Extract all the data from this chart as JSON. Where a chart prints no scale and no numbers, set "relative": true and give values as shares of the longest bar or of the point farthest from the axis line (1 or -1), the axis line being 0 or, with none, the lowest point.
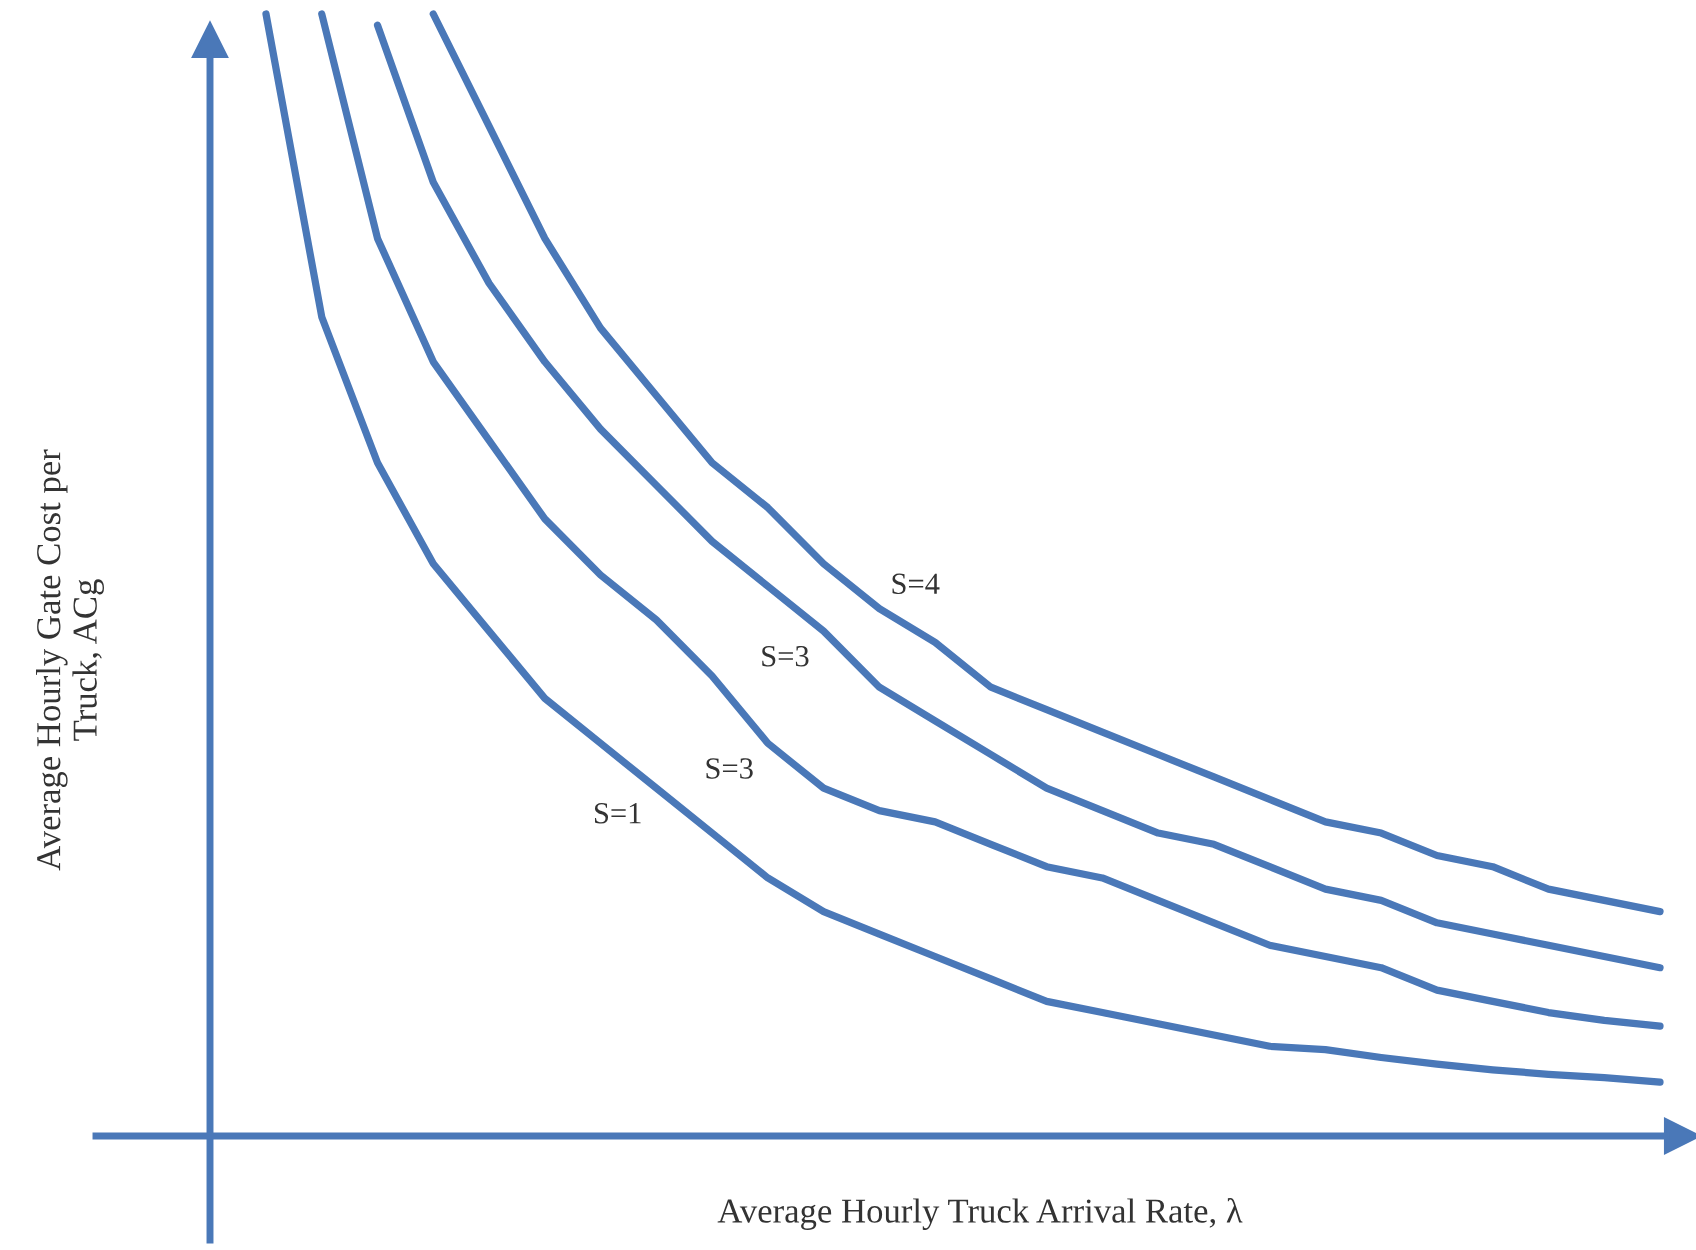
{
  "chart_data": {
    "type": "line",
    "relative": true,
    "xlabel": "Average Hourly Truck Arrival Rate, λ",
    "ylabel": "Average Hourly Gate Cost per\nTruck, ACg",
    "categories": [
      null,
      null,
      null,
      null,
      null,
      null,
      null,
      null,
      null,
      null,
      null,
      null,
      null,
      null,
      null,
      null,
      null,
      null,
      null,
      null,
      null,
      null,
      null,
      null,
      null,
      null
    ],
    "series": [
      {
        "name": "S=1",
        "color": "#4a78b8",
        "values": [
          1.0,
          0.73,
          0.6,
          0.51,
          0.45,
          0.39,
          0.35,
          0.31,
          0.27,
          0.23,
          0.2,
          0.18,
          0.16,
          0.14,
          0.12,
          0.11,
          0.1,
          0.09,
          0.08,
          0.077,
          0.07,
          0.064,
          0.059,
          0.055,
          0.052,
          0.048
        ]
      },
      {
        "name": "S=3",
        "color": "#4a78b8",
        "values": [
          null,
          1.0,
          0.8,
          0.69,
          0.62,
          0.55,
          0.5,
          0.46,
          0.41,
          0.35,
          0.31,
          0.29,
          0.28,
          0.26,
          0.24,
          0.23,
          0.21,
          0.19,
          0.17,
          0.16,
          0.15,
          0.13,
          0.12,
          0.11,
          0.103,
          0.098
        ]
      },
      {
        "name": "S=3",
        "color": "#4a78b8",
        "values": [
          null,
          null,
          0.99,
          0.85,
          0.76,
          0.69,
          0.63,
          0.58,
          0.53,
          0.49,
          0.45,
          0.4,
          0.37,
          0.34,
          0.31,
          0.29,
          0.27,
          0.26,
          0.24,
          0.22,
          0.21,
          0.19,
          0.18,
          0.17,
          0.16,
          0.15
        ]
      },
      {
        "name": "S=4",
        "color": "#4a78b8",
        "values": [
          null,
          null,
          null,
          1.0,
          0.9,
          0.8,
          0.72,
          0.66,
          0.6,
          0.56,
          0.51,
          0.47,
          0.44,
          0.4,
          0.38,
          0.36,
          0.34,
          0.32,
          0.3,
          0.28,
          0.27,
          0.25,
          0.24,
          0.22,
          0.21,
          0.2
        ]
      }
    ]
  }
}
